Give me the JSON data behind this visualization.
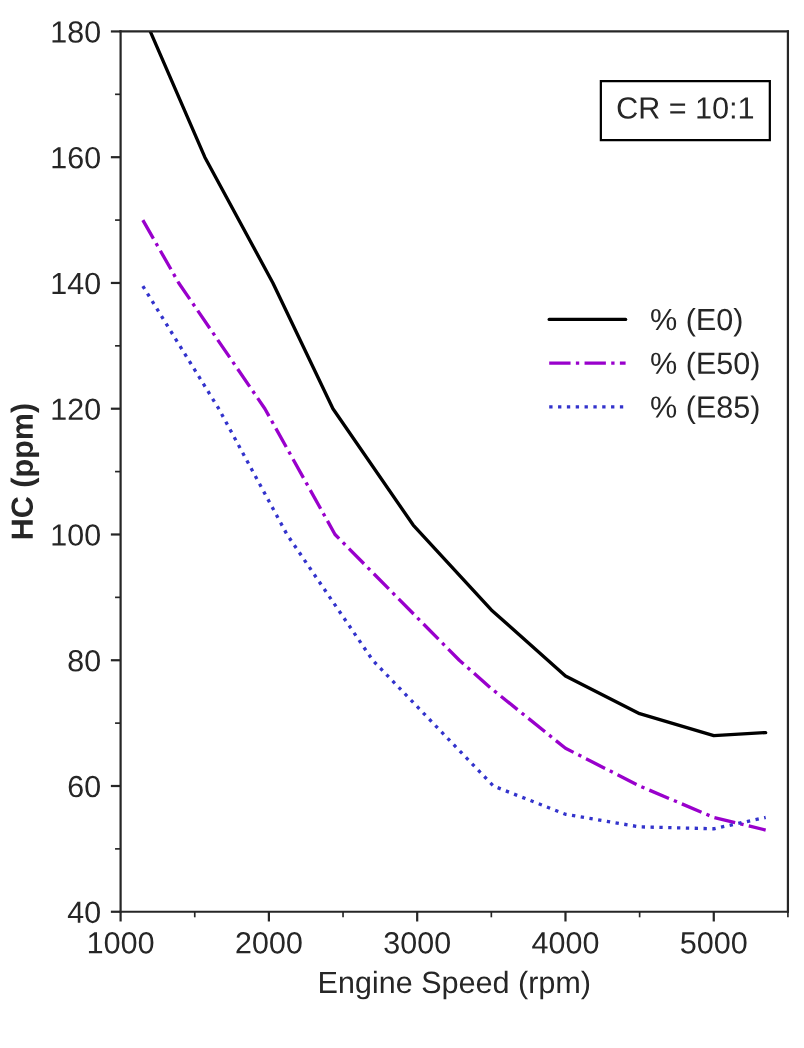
{
  "chart_data": {
    "type": "line",
    "xlabel": "Engine Speed (rpm)",
    "ylabel": "HC (ppm)",
    "xlim": [
      1000,
      5500
    ],
    "xticks": [
      1000,
      2000,
      3000,
      4000,
      5000
    ],
    "ylim": [
      40,
      180
    ],
    "yticks": [
      40,
      60,
      80,
      100,
      120,
      140,
      160,
      180
    ],
    "grid": false,
    "legend": "right",
    "marker": "none",
    "annotations": [
      "CR = 10:1"
    ],
    "series": [
      {
        "name": "% (E0)",
        "color": "#000000",
        "line_style": "solid",
        "x": [
          1200,
          1568,
          2027,
          2432,
          2973,
          3500,
          4000,
          4500,
          5000,
          5350
        ],
        "values": [
          180,
          160,
          140,
          120,
          101.5,
          88,
          77.5,
          71.5,
          68,
          68.5
        ]
      },
      {
        "name": "% (E50)",
        "color": "#9900cc",
        "line_style": "dashdot",
        "x": [
          1150,
          1392,
          1973,
          2446,
          3284,
          3500,
          4000,
          4500,
          5000,
          5350
        ],
        "values": [
          150,
          140,
          120,
          100,
          80,
          75.5,
          66,
          60,
          55,
          53
        ]
      },
      {
        "name": "% (E85)",
        "color": "#3333cc",
        "line_style": "dotted",
        "x": [
          1150,
          1662,
          2122,
          2700,
          3514,
          4000,
          4500,
          5000,
          5350
        ],
        "values": [
          139.5,
          120,
          100,
          80,
          60,
          55.5,
          53.5,
          53.2,
          55
        ]
      }
    ]
  }
}
